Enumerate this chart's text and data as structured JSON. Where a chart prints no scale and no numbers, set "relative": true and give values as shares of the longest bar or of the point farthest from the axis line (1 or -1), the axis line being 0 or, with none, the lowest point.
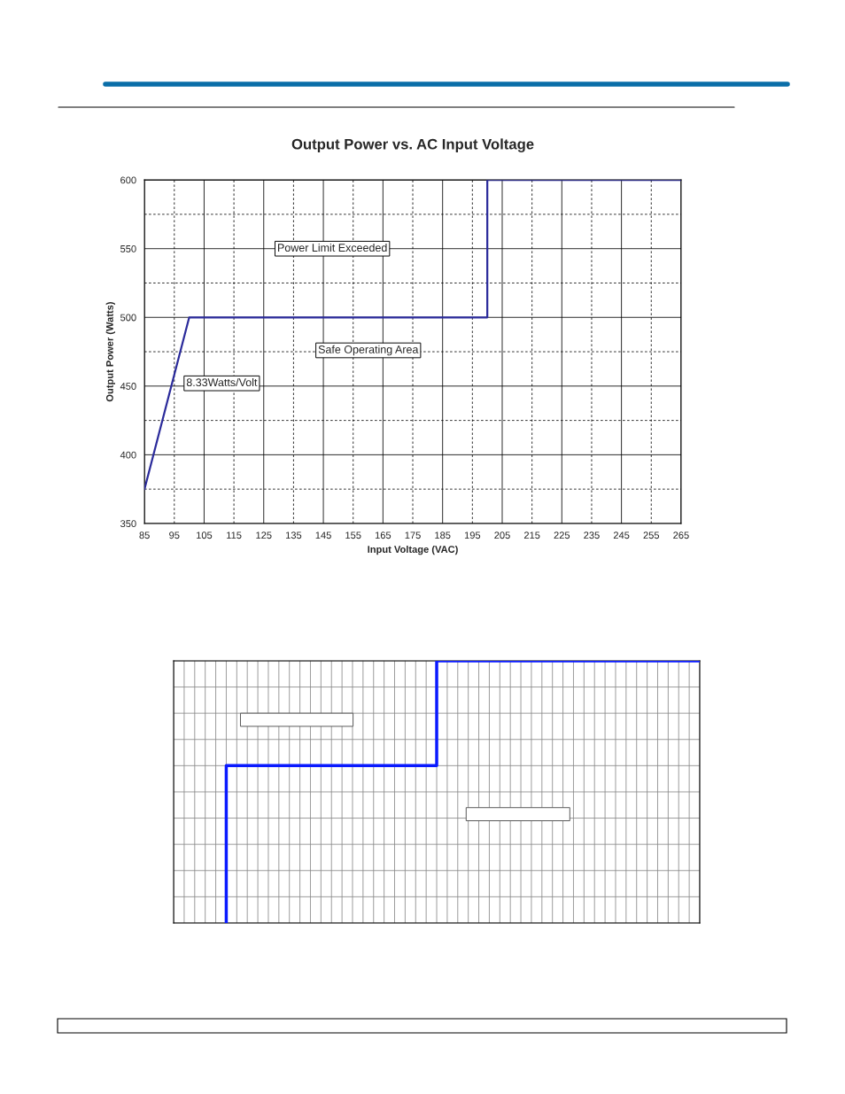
{
  "chart_data": [
    {
      "type": "line",
      "title": "Output Power vs. AC Input Voltage",
      "xlabel": "Input Voltage (VAC)",
      "ylabel": "Output Power (Watts)",
      "series": [
        {
          "color": "#2b2b9b",
          "x": [
            85,
            100,
            200,
            200,
            265
          ],
          "values": [
            375,
            500,
            500,
            600,
            600
          ]
        }
      ],
      "xlim": [
        85,
        265
      ],
      "xticks": [
        85,
        95,
        105,
        115,
        125,
        135,
        145,
        155,
        165,
        175,
        185,
        195,
        205,
        215,
        225,
        235,
        245,
        255,
        265
      ],
      "ylim": [
        350,
        600
      ],
      "yticks": [
        350,
        {
          "value": 375,
          "label": null
        },
        400,
        {
          "value": 425,
          "label": null
        },
        450,
        {
          "value": 475,
          "label": null
        },
        500,
        {
          "value": 525,
          "label": null
        },
        550,
        {
          "value": 575,
          "label": null
        },
        600
      ],
      "grid": true,
      "marker": "none",
      "line_style": "solid",
      "annotations": [
        "Power Limit Exceeded",
        "Safe Operating Area",
        "8.33Watts/Volt"
      ]
    },
    {
      "type": "step",
      "relative": true,
      "categories": [
        null,
        null,
        null,
        null,
        null,
        null,
        null,
        null,
        null,
        null,
        null,
        null,
        null,
        null,
        null,
        null,
        null,
        null,
        null,
        null,
        null,
        null,
        null,
        null,
        null,
        null,
        null,
        null,
        null,
        null,
        null,
        null,
        null,
        null,
        null,
        null,
        null,
        null,
        null,
        null,
        null,
        null,
        null,
        null,
        null,
        null,
        null,
        null,
        null,
        null,
        null
      ],
      "series": [
        {
          "color": "#0a1aff",
          "values": [
            null,
            null,
            null,
            null,
            null,
            0,
            0.6,
            0.6,
            0.6,
            0.6,
            0.6,
            0.6,
            0.6,
            0.6,
            0.6,
            0.6,
            0.6,
            0.6,
            0.6,
            0.6,
            0.6,
            0.6,
            0.6,
            0.6,
            0.6,
            0.6,
            1,
            1,
            1,
            1,
            1,
            1,
            1,
            1,
            1,
            1,
            1,
            1,
            1,
            1,
            1,
            1,
            1,
            1,
            1,
            1,
            1,
            1,
            1,
            1,
            1
          ]
        }
      ],
      "tick_labels": false,
      "grid": true,
      "marker": "none",
      "line_style": "solid"
    }
  ]
}
